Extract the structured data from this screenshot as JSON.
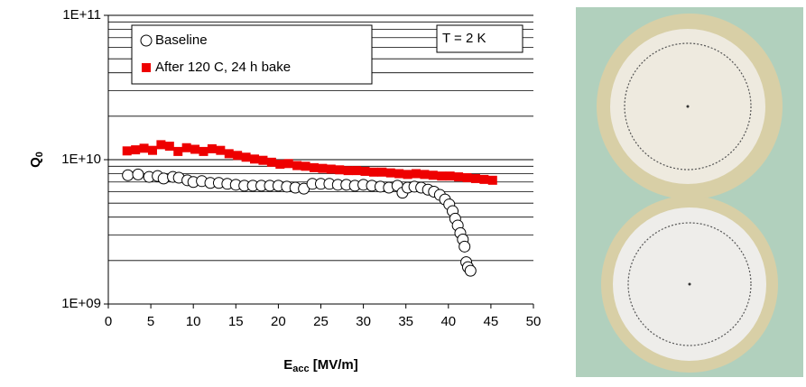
{
  "chart_data": {
    "type": "scatter",
    "xlabel": {
      "main": "E",
      "sub": "acc",
      "rest": " [MV/m]"
    },
    "ylabel": {
      "main": "Q",
      "sub": "0"
    },
    "annotation": "T = 2 K",
    "xlim": [
      0,
      50
    ],
    "xticks": [
      0,
      5,
      10,
      15,
      20,
      25,
      30,
      35,
      40,
      45,
      50
    ],
    "ylim": [
      1000000000,
      100000000000
    ],
    "log_y": true,
    "grid": true,
    "yticks": [
      {
        "value": 100000000000,
        "label": "1E+11"
      },
      {
        "value": 10000000000,
        "label": "1E+10"
      },
      {
        "value": 1000000000,
        "label": "1E+09"
      }
    ],
    "minor_yticks": [
      2000000000,
      3000000000,
      4000000000,
      5000000000,
      6000000000,
      7000000000,
      8000000000,
      9000000000,
      20000000000,
      30000000000,
      40000000000,
      50000000000,
      60000000000,
      70000000000,
      80000000000,
      90000000000
    ],
    "legend": "top-left",
    "series": [
      {
        "name": "Baseline",
        "marker": "circle",
        "color": "#000000",
        "x": [
          2.3,
          3.5,
          4.8,
          5.8,
          6.5,
          7.6,
          8.3,
          9.3,
          10,
          11,
          12,
          13,
          14,
          15,
          16,
          17,
          18,
          19,
          20,
          21,
          22,
          23,
          24,
          25,
          26,
          27,
          28,
          29,
          30,
          31,
          32,
          33,
          34,
          34.6,
          35.2,
          36,
          36.8,
          37.6,
          38.3,
          39,
          39.6,
          40.1,
          40.5,
          40.8,
          41.1,
          41.4,
          41.7,
          41.9,
          42.1,
          42.3,
          42.6
        ],
        "values": [
          7800000000,
          7900000000,
          7600000000,
          7700000000,
          7400000000,
          7600000000,
          7500000000,
          7200000000,
          7000000000,
          7100000000,
          6900000000,
          6900000000,
          6800000000,
          6700000000,
          6600000000,
          6600000000,
          6600000000,
          6600000000,
          6600000000,
          6500000000,
          6400000000,
          6300000000,
          6800000000,
          6800000000,
          6800000000,
          6700000000,
          6700000000,
          6600000000,
          6700000000,
          6600000000,
          6500000000,
          6400000000,
          6600000000,
          5900000000,
          6400000000,
          6500000000,
          6400000000,
          6200000000,
          6000000000,
          5700000000,
          5300000000,
          4900000000,
          4400000000,
          3900000000,
          3500000000,
          3100000000,
          2800000000,
          2500000000,
          1950000000,
          1800000000,
          1700000000
        ]
      },
      {
        "name": "After 120 C, 24 h bake",
        "marker": "square",
        "color": "#ee0000",
        "x": [
          2.2,
          3.2,
          4.2,
          5.2,
          6.2,
          7.2,
          8.2,
          9.2,
          10.2,
          11.2,
          12.2,
          13.2,
          14.2,
          15.2,
          16.2,
          17.2,
          18.2,
          19.2,
          20.2,
          21.2,
          22.2,
          23.2,
          24.2,
          25.2,
          26.2,
          27.2,
          28.2,
          29.2,
          30.2,
          31.2,
          32.2,
          33.2,
          34.2,
          35.2,
          36.2,
          37.2,
          38.2,
          39.2,
          40.2,
          41.2,
          42.2,
          43.2,
          44.2,
          45.2
        ],
        "values": [
          11500000000,
          11700000000,
          12000000000,
          11600000000,
          12700000000,
          12400000000,
          11400000000,
          12100000000,
          11800000000,
          11400000000,
          11900000000,
          11600000000,
          11000000000,
          10700000000,
          10400000000,
          10100000000,
          9900000000,
          9600000000,
          9300000000,
          9400000000,
          9100000000,
          9000000000,
          8800000000,
          8700000000,
          8600000000,
          8500000000,
          8400000000,
          8400000000,
          8300000000,
          8200000000,
          8200000000,
          8100000000,
          8000000000,
          7900000000,
          8000000000,
          7900000000,
          7800000000,
          7700000000,
          7700000000,
          7600000000,
          7500000000,
          7400000000,
          7300000000,
          7200000000
        ]
      }
    ]
  }
}
